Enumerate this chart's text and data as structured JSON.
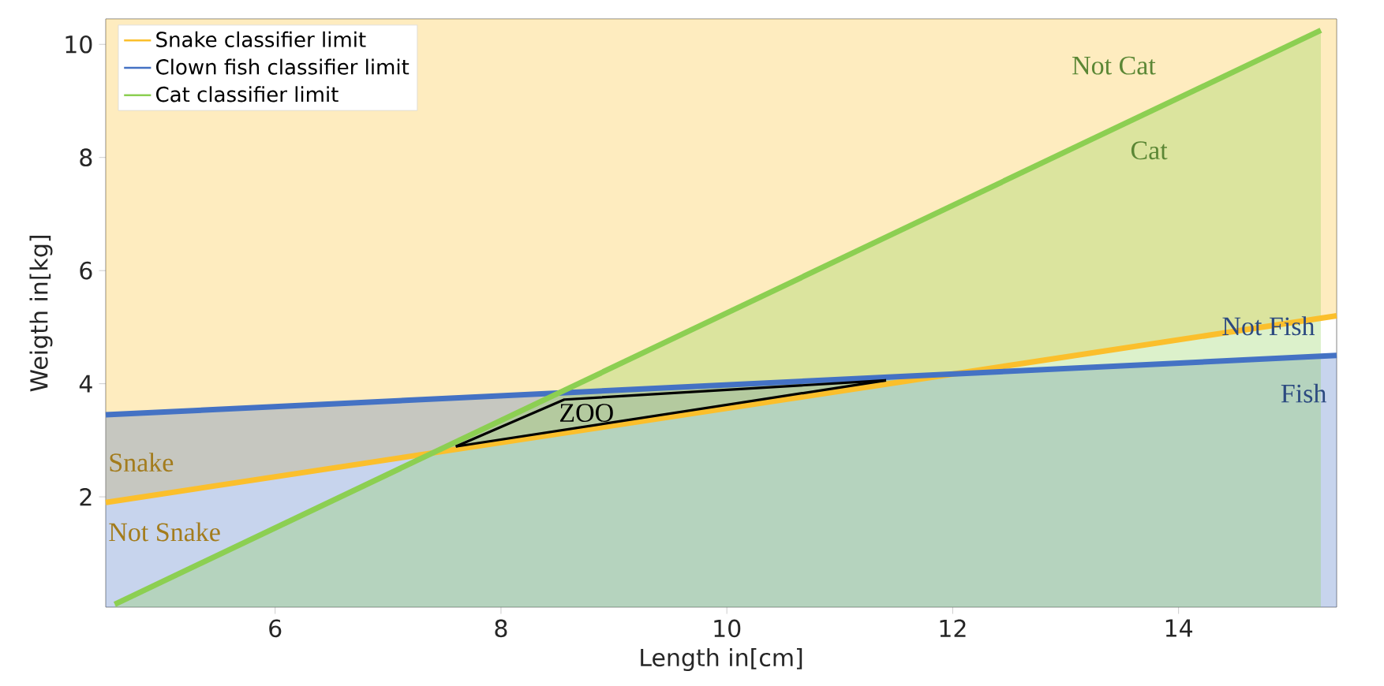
{
  "chart_data": {
    "type": "line",
    "xlabel": "Length in[cm]",
    "ylabel": "Weigth in[kg]",
    "xlim": [
      4.5,
      15.4
    ],
    "ylim": [
      0.05,
      10.45
    ],
    "xticks": [
      6,
      8,
      10,
      12,
      14
    ],
    "yticks": [
      2,
      4,
      6,
      8,
      10
    ],
    "legend": "top left",
    "grid": false,
    "marker": "none",
    "line_style": "solid",
    "series": [
      {
        "name": "Snake classifier limit",
        "color": "#fbbf2c",
        "x": [
          4.5,
          15.4
        ],
        "values": [
          1.9,
          5.2
        ],
        "lower": [
          1.9,
          5.2
        ],
        "upper": [
          10.45,
          10.45
        ]
      },
      {
        "name": "Clown fish classifier limit",
        "color": "#4472c4",
        "x": [
          4.5,
          15.4
        ],
        "values": [
          3.45,
          4.5
        ],
        "lower": [
          0.05,
          0.05
        ],
        "upper": [
          3.45,
          4.5
        ]
      },
      {
        "name": "Cat classifier limit",
        "color": "#8ccf52",
        "x": [
          4.58,
          15.26
        ],
        "values": [
          0.1,
          10.25
        ],
        "lower": [
          0.05,
          0.05
        ],
        "upper": [
          0.1,
          10.25
        ]
      },
      {
        "color": "#000000",
        "x": [
          7.6,
          8.56,
          11.41
        ],
        "values": [
          2.89,
          3.72,
          4.06
        ]
      },
      {
        "color": "#000000",
        "x": [
          7.6,
          11.41
        ],
        "values": [
          2.89,
          4.06
        ]
      }
    ],
    "annotations": [
      "Snake",
      "Not Snake",
      "Not Cat",
      "Cat",
      "Not Fish",
      "Fish",
      "ZOO"
    ]
  }
}
